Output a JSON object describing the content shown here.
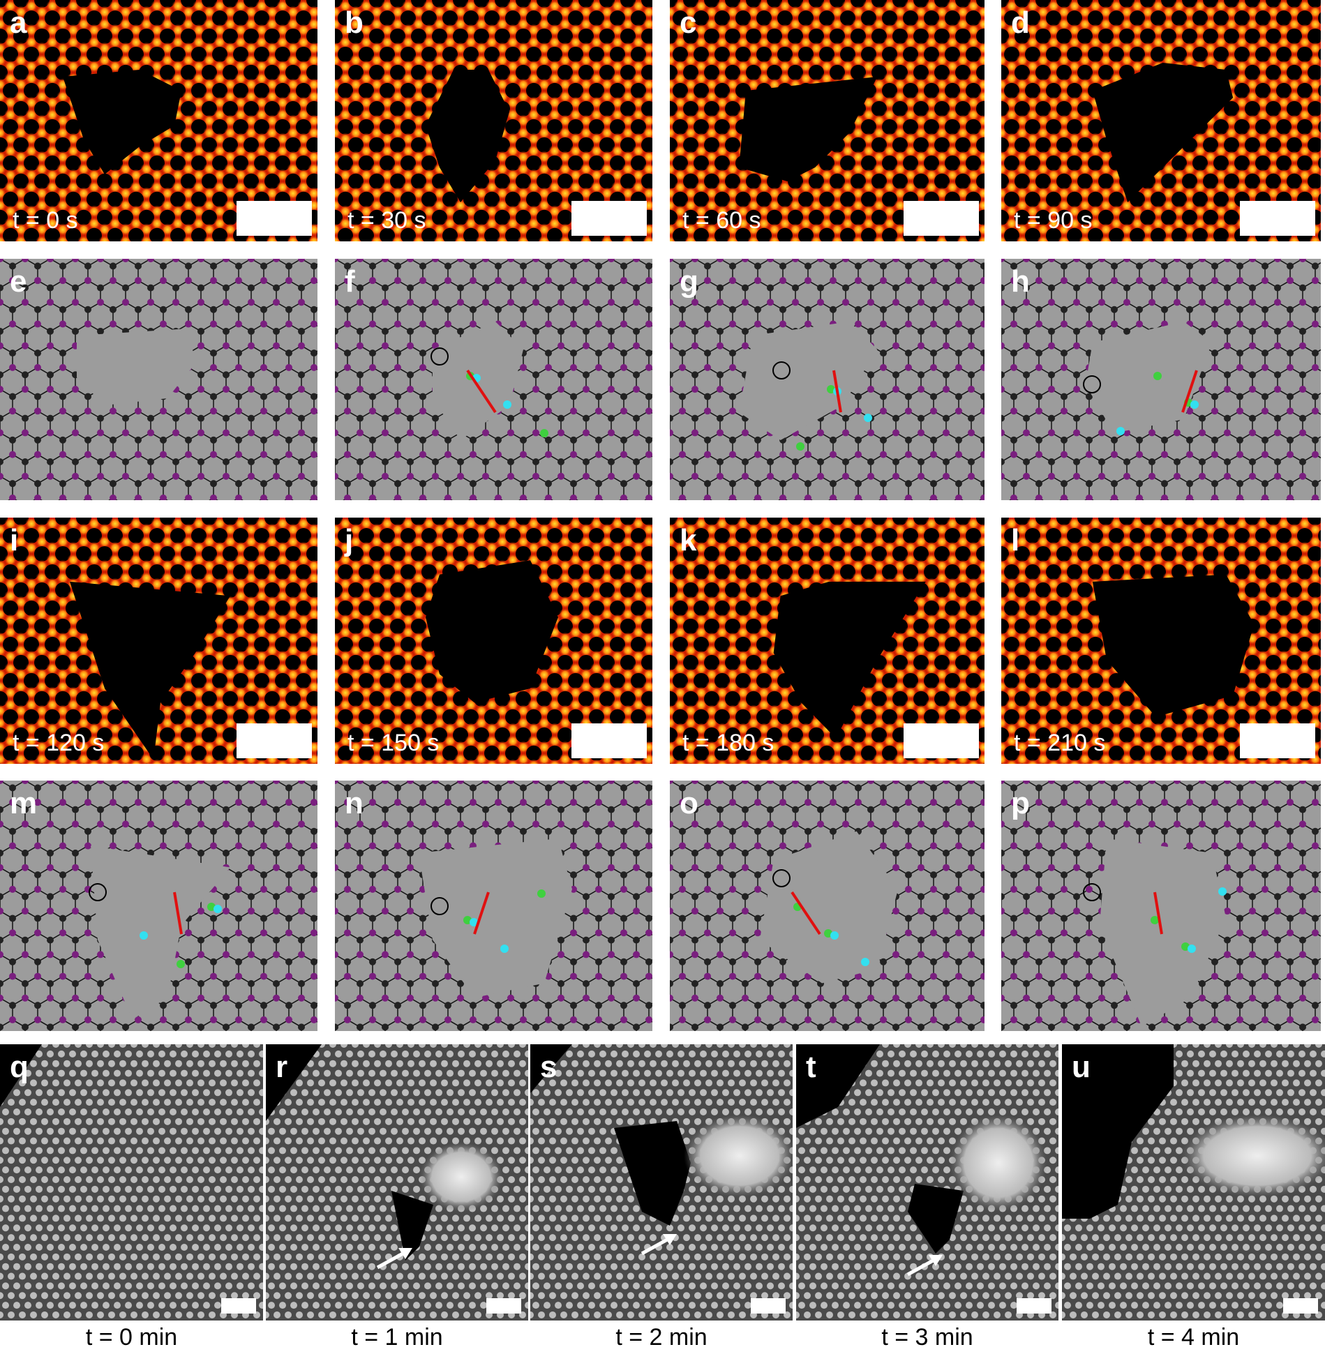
{
  "rows": [
    {
      "type": "hot",
      "panels": [
        {
          "label": "a",
          "time": "t = 0 s"
        },
        {
          "label": "b",
          "time": "t = 30 s"
        },
        {
          "label": "c",
          "time": "t = 60 s"
        },
        {
          "label": "d",
          "time": "t = 90 s"
        }
      ]
    },
    {
      "type": "lattice",
      "panels": [
        {
          "label": "e"
        },
        {
          "label": "f"
        },
        {
          "label": "g"
        },
        {
          "label": "h"
        }
      ]
    },
    {
      "type": "hot",
      "panels": [
        {
          "label": "i",
          "time": "t = 120 s"
        },
        {
          "label": "j",
          "time": "t = 150 s"
        },
        {
          "label": "k",
          "time": "t = 180 s"
        },
        {
          "label": "l",
          "time": "t = 210 s"
        }
      ]
    },
    {
      "type": "lattice",
      "panels": [
        {
          "label": "m"
        },
        {
          "label": "n"
        },
        {
          "label": "o"
        },
        {
          "label": "p"
        }
      ]
    },
    {
      "type": "stem",
      "panels": [
        {
          "label": "q",
          "time": "t = 0 min"
        },
        {
          "label": "r",
          "time": "t = 1 min"
        },
        {
          "label": "s",
          "time": "t = 2 min"
        },
        {
          "label": "t",
          "time": "t = 3 min"
        },
        {
          "label": "u",
          "time": "t = 4 min"
        }
      ]
    }
  ],
  "colors": {
    "hot_base": "#cc1a00",
    "hot_spot": "#ffe030",
    "lattice_bg": "#9c9c9c",
    "atom_dark": "#222222",
    "atom_purple": "#7a1f7f",
    "adatom_cyan": "#33e0f0",
    "adatom_green": "#3fd03f",
    "arrow": "#e01010"
  }
}
